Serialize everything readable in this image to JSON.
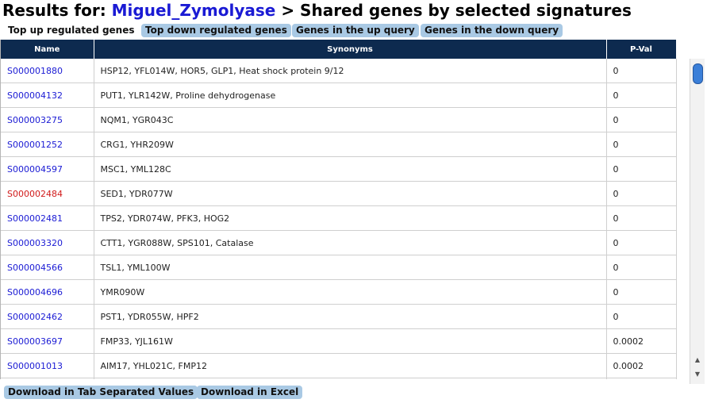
{
  "title": {
    "prefix": "Results for: ",
    "query": "Miguel_Zymolyase",
    "suffix": " > Shared genes by selected signatures"
  },
  "tabs": [
    {
      "label": "Top up regulated genes",
      "active": true
    },
    {
      "label": "Top down regulated genes",
      "active": false
    },
    {
      "label": "Genes in the up query",
      "active": false
    },
    {
      "label": "Genes in the down query",
      "active": false
    }
  ],
  "table": {
    "headers": [
      "Name",
      "Synonyms",
      "P-Val"
    ],
    "rows": [
      {
        "name": "S000001880",
        "synonyms": "HSP12, YFL014W, HOR5, GLP1, Heat shock protein 9/12",
        "pval": "0"
      },
      {
        "name": "S000004132",
        "synonyms": "PUT1, YLR142W, Proline dehydrogenase",
        "pval": "0"
      },
      {
        "name": "S000003275",
        "synonyms": "NQM1, YGR043C",
        "pval": "0"
      },
      {
        "name": "S000001252",
        "synonyms": "CRG1, YHR209W",
        "pval": "0"
      },
      {
        "name": "S000004597",
        "synonyms": "MSC1, YML128C",
        "pval": "0"
      },
      {
        "name": "S000002484",
        "synonyms": "SED1, YDR077W",
        "pval": "0"
      },
      {
        "name": "S000002481",
        "synonyms": "TPS2, YDR074W, PFK3, HOG2",
        "pval": "0"
      },
      {
        "name": "S000003320",
        "synonyms": "CTT1, YGR088W, SPS101, Catalase",
        "pval": "0"
      },
      {
        "name": "S000004566",
        "synonyms": "TSL1, YML100W",
        "pval": "0"
      },
      {
        "name": "S000004696",
        "synonyms": "YMR090W",
        "pval": "0"
      },
      {
        "name": "S000002462",
        "synonyms": "PST1, YDR055W, HPF2",
        "pval": "0"
      },
      {
        "name": "S000003697",
        "synonyms": "FMP33, YJL161W",
        "pval": "0.0002"
      },
      {
        "name": "S000001013",
        "synonyms": "AIM17, YHL021C, FMP12",
        "pval": "0.0002"
      },
      {
        "name": "",
        "synonyms": "",
        "pval": ""
      }
    ]
  },
  "buttons": {
    "download_tsv": "Download in Tab Separated Values",
    "download_excel": "Download in Excel"
  },
  "colors": {
    "header_bg": "#0d2a4f",
    "link": "#1a1ad4",
    "visited_link": "#d11a1a",
    "button_bg": "#a9c9e4"
  },
  "icons": {
    "scroll_up": "triangle-up-icon",
    "scroll_down": "triangle-down-icon"
  }
}
